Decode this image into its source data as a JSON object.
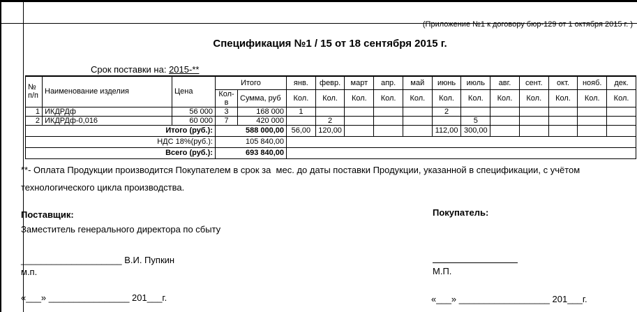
{
  "header": {
    "annotation": "(Приложение №1 к договору бюр-129 от 1 октября 2015 г. )",
    "title": "Спецификация №1 / 15 от 18 сентября 2015 г.",
    "delivery_label": "Срок поставки на:",
    "delivery_value": "2015-**"
  },
  "table": {
    "headers": {
      "num": "№\nп/п",
      "name": "Наименование изделия",
      "price": "Цена",
      "total_group": "Итого",
      "qty": "Кол-в",
      "sum": "Сумма, руб",
      "month_sub": "Кол.",
      "months": [
        "янв.",
        "февр.",
        "март",
        "апр.",
        "май",
        "июнь",
        "июль",
        "авг.",
        "сент.",
        "окт.",
        "нояб.",
        "дек."
      ]
    },
    "rows": [
      {
        "num": "1",
        "name": "ИКДРДф",
        "price": "56 000",
        "qty": "3",
        "sum": "168 000",
        "months": [
          "1",
          "",
          "",
          "",
          "",
          "2",
          "",
          "",
          "",
          "",
          "",
          ""
        ]
      },
      {
        "num": "2",
        "name": "ИКДРДф-0,016",
        "price": "60 000",
        "qty": "7",
        "sum": "420 000",
        "months": [
          "",
          "2",
          "",
          "",
          "",
          "",
          "5",
          "",
          "",
          "",
          "",
          ""
        ]
      }
    ],
    "totals": {
      "itogo": {
        "label": "Итого (руб.):",
        "value": "588 000,00",
        "months": [
          "56,00",
          "120,00",
          "",
          "",
          "",
          "112,00",
          "300,00",
          "",
          "",
          "",
          "",
          ""
        ]
      },
      "nds": {
        "label": "НДС 18%(руб.):",
        "value": "105 840,00"
      },
      "vsego": {
        "label": "Всего (руб.):",
        "value": "693 840,00"
      }
    }
  },
  "footnote": "**- Оплата Продукции производится Покупателем в срок за  мес. до даты поставки Продукции, указанной в спецификации, с учётом технологического цикла производства.",
  "signatures": {
    "supplier_label": "Поставщик:",
    "supplier_position": "Заместитель генерального директора по сбыту",
    "supplier_sign_line": "____________________ В.И. Пупкин",
    "supplier_seal": "м.п.",
    "buyer_label": "Покупатель:",
    "buyer_seal": "М.П.",
    "supplier_date_line": "«___» ________________ 201___г.",
    "buyer_date_line": "«___» __________________ 201___г."
  }
}
